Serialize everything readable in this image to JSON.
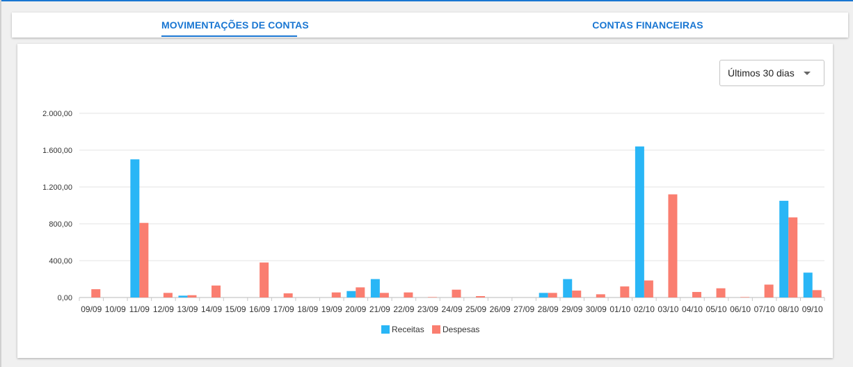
{
  "tabs": [
    {
      "label": "MOVIMENTAÇÕES DE CONTAS",
      "active": true
    },
    {
      "label": "CONTAS FINANCEIRAS",
      "active": false
    }
  ],
  "period_select": {
    "value": "Últimos 30 dias"
  },
  "colors": {
    "accent": "#1976d2",
    "receitas": "#29b6f6",
    "despesas": "#fa7e70"
  },
  "chart_data": {
    "type": "bar",
    "title": "",
    "xlabel": "",
    "ylabel": "",
    "ylim": [
      0,
      2000
    ],
    "yticks": [
      "0,00",
      "400,00",
      "800,00",
      "1.200,00",
      "1.600,00",
      "2.000,00"
    ],
    "ytick_values": [
      0,
      400,
      800,
      1200,
      1600,
      2000
    ],
    "grid": true,
    "legend": "bottom-center",
    "categories": [
      "09/09",
      "10/09",
      "11/09",
      "12/09",
      "13/09",
      "14/09",
      "15/09",
      "16/09",
      "17/09",
      "18/09",
      "19/09",
      "20/09",
      "21/09",
      "22/09",
      "23/09",
      "24/09",
      "25/09",
      "26/09",
      "27/09",
      "28/09",
      "29/09",
      "30/09",
      "01/10",
      "02/10",
      "03/10",
      "04/10",
      "05/10",
      "06/10",
      "07/10",
      "08/10",
      "09/10"
    ],
    "series": [
      {
        "name": "Receitas",
        "values": [
          0,
          0,
          1500,
          0,
          20,
          0,
          0,
          0,
          0,
          0,
          0,
          70,
          200,
          0,
          0,
          0,
          0,
          0,
          0,
          50,
          200,
          0,
          0,
          1640,
          0,
          0,
          0,
          0,
          0,
          1050,
          270
        ]
      },
      {
        "name": "Despesas",
        "values": [
          90,
          0,
          810,
          50,
          25,
          130,
          0,
          380,
          45,
          0,
          55,
          110,
          50,
          55,
          5,
          85,
          15,
          0,
          0,
          50,
          75,
          35,
          120,
          185,
          1120,
          60,
          100,
          5,
          140,
          870,
          80
        ]
      }
    ]
  }
}
